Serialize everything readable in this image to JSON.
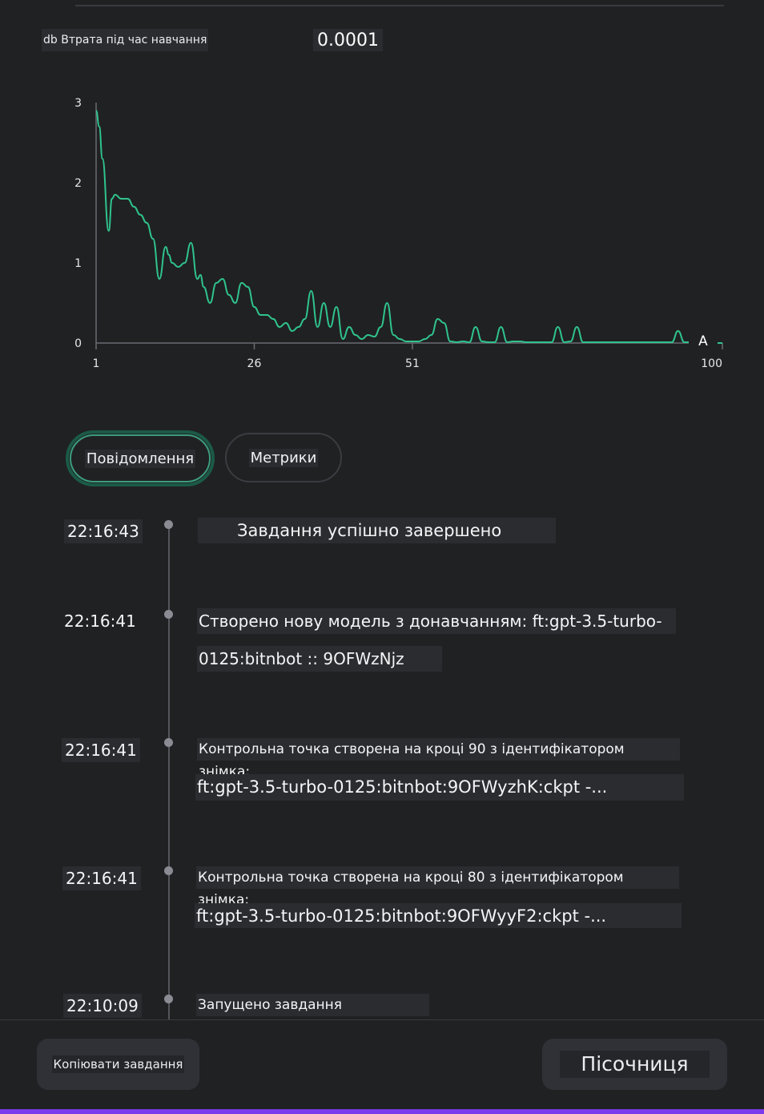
{
  "loss": {
    "label": "db Втрата під час навчання",
    "value": "0.0001"
  },
  "chart_data": {
    "type": "line",
    "title": "",
    "xlabel": "",
    "ylabel": "",
    "xlim": [
      1,
      100
    ],
    "ylim": [
      0,
      3
    ],
    "y_ticks": [
      "3",
      "2",
      "1",
      "0"
    ],
    "x_ticks": [
      "1",
      "26",
      "51",
      "100"
    ],
    "end_marker_label": "A",
    "series": [
      {
        "color": "#2fc48d",
        "x": [
          1,
          1.5,
          2,
          3,
          3.5,
          4,
          5,
          6,
          7,
          8,
          9,
          10,
          11,
          12,
          12.5,
          13,
          14,
          15,
          16,
          17,
          17.5,
          18,
          19,
          20,
          21,
          22,
          23,
          24,
          25,
          26,
          27,
          28,
          29,
          30,
          31,
          32,
          33,
          34,
          35,
          36,
          37,
          38,
          39,
          40,
          41,
          42,
          43,
          44,
          45,
          46,
          47,
          48,
          49,
          50,
          51,
          52,
          53,
          54,
          55,
          56,
          57,
          58,
          59,
          60,
          61,
          62,
          63,
          64,
          65,
          66,
          67,
          68,
          69,
          70,
          71,
          72,
          73,
          74,
          75,
          76,
          77,
          78,
          79,
          80,
          81,
          82,
          83,
          84,
          85,
          86,
          87,
          88,
          89,
          90,
          91,
          92,
          93,
          94,
          95,
          96,
          97,
          98,
          99,
          100
        ],
        "y": [
          2.9,
          2.7,
          2.3,
          1.4,
          1.8,
          1.85,
          1.8,
          1.8,
          1.7,
          1.6,
          1.5,
          1.3,
          0.8,
          1.2,
          1.1,
          1.0,
          0.95,
          1.0,
          1.25,
          0.8,
          0.85,
          0.7,
          0.5,
          0.75,
          0.8,
          0.6,
          0.5,
          0.75,
          0.7,
          0.45,
          0.35,
          0.35,
          0.3,
          0.2,
          0.25,
          0.15,
          0.2,
          0.3,
          0.65,
          0.2,
          0.5,
          0.2,
          0.45,
          0.05,
          0.2,
          0.1,
          0.05,
          0.1,
          0.08,
          0.2,
          0.5,
          0.1,
          0.05,
          0.02,
          0.02,
          0.02,
          0.05,
          0.1,
          0.3,
          0.25,
          0.02,
          0.01,
          0.02,
          0.01,
          0.2,
          0.02,
          0.01,
          0.01,
          0.2,
          0.01,
          0.02,
          0.02,
          0.01,
          0.01,
          0.01,
          0.01,
          0.01,
          0.2,
          0.01,
          0.02,
          0.2,
          0.01,
          0.01,
          0.01,
          0.01,
          0.01,
          0.01,
          0.01,
          0.01,
          0.01,
          0.01,
          0.01,
          0.01,
          0.01,
          0.01,
          0.01,
          0.15,
          0.01,
          0.01,
          0.05,
          0.01,
          0.0,
          0.0,
          0.0
        ]
      }
    ]
  },
  "tabs": {
    "messages": "Повідомлення",
    "metrics": "Метрики"
  },
  "events": [
    {
      "time": "22:16:43",
      "line1": "Завдання успішно завершено",
      "line2": ""
    },
    {
      "time": "22:16:41",
      "line1": "Створено нову модель з донавчанням: ft:gpt-3.5-turbo-",
      "line2": "0125:bitnbot :: 9OFWzNjz"
    },
    {
      "time": "22:16:41",
      "line1": "Контрольна точка створена на кроці 90 з ідентифікатором знімка:",
      "line2": "ft:gpt-3.5-turbo-0125:bitnbot:9OFWyzhK:ckpt -..."
    },
    {
      "time": "22:16:41",
      "line1": "Контрольна точка створена на кроці 80 з ідентифікатором знімка:",
      "line2": "ft:gpt-3.5-turbo-0125:bitnbot:9OFWyyF2:ckpt -..."
    },
    {
      "time": "22:10:09",
      "line1": "Запущено завдання донавчання",
      "line2": ""
    }
  ],
  "footer": {
    "copy_label": "Копіювати завдання",
    "sandbox_label": "Пісочниця"
  },
  "colors": {
    "accent": "#2fc48d",
    "background": "#202123",
    "brand_bar": "#7c3aed"
  }
}
